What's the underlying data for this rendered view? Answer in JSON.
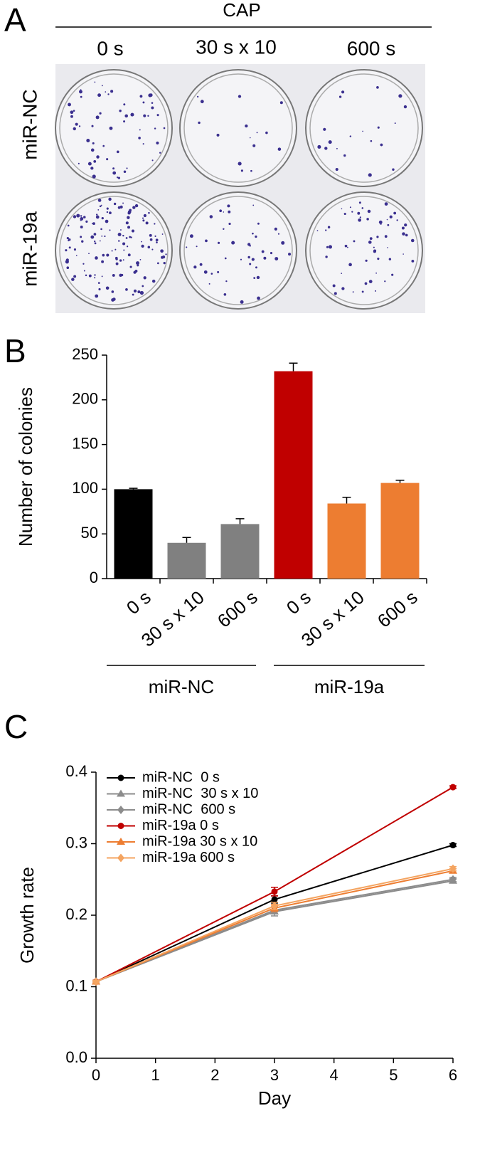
{
  "panel_a": {
    "letter": "A",
    "group_label": "CAP",
    "columns": [
      "0 s",
      "30 s x 10",
      "600 s"
    ],
    "rows": [
      "miR-NC",
      "miR-19a"
    ]
  },
  "chart_data": [
    {
      "letter": "B",
      "type": "bar",
      "y_label": "Number of colonies",
      "categories": [
        "0 s",
        "30 s x 10",
        "600 s",
        "0 s",
        "30 s x 10",
        "600 s"
      ],
      "values": [
        100,
        40,
        61,
        232,
        84,
        107
      ],
      "errors": [
        1,
        6,
        6,
        9,
        7,
        3
      ],
      "colors": [
        "#000000",
        "#808080",
        "#808080",
        "#c00000",
        "#ed7d31",
        "#ed7d31"
      ],
      "groups": [
        "miR-NC",
        "miR-19a"
      ],
      "ylim": [
        0,
        250
      ],
      "yticks": [
        0,
        50,
        100,
        150,
        200,
        250
      ]
    },
    {
      "letter": "C",
      "type": "line",
      "x_label": "Day",
      "y_label": "Growth rate",
      "x": [
        0,
        3,
        6
      ],
      "xlim": [
        0,
        6
      ],
      "xticks": [
        0,
        1,
        2,
        3,
        4,
        5,
        6
      ],
      "ylim": [
        0,
        0.4
      ],
      "yticks": [
        {
          "value": 0,
          "label": "0.0"
        },
        0.1,
        0.2,
        0.3,
        0.4
      ],
      "series": [
        {
          "name": "miR-NC  0 s",
          "color": "#000000",
          "marker": "circle",
          "values": [
            0.107,
            0.222,
            0.298
          ],
          "errors": [
            0.002,
            0.005,
            0.002
          ]
        },
        {
          "name": "miR-NC  30 s x 10",
          "color": "#8c8c8c",
          "marker": "triangle",
          "values": [
            0.107,
            0.205,
            0.248
          ],
          "errors": [
            0.002,
            0.006,
            0.003
          ]
        },
        {
          "name": "miR-NC  600 s",
          "color": "#8c8c8c",
          "marker": "diamond",
          "values": [
            0.107,
            0.207,
            0.25
          ],
          "errors": [
            0.002,
            0.005,
            0.003
          ]
        },
        {
          "name": "miR-19a 0 s",
          "color": "#c00000",
          "marker": "circle",
          "values": [
            0.107,
            0.233,
            0.379
          ],
          "errors": [
            0.002,
            0.006,
            0.002
          ]
        },
        {
          "name": "miR-19a 30 s x 10",
          "color": "#ed7d31",
          "marker": "triangle",
          "values": [
            0.107,
            0.21,
            0.262
          ],
          "errors": [
            0.002,
            0.005,
            0.003
          ]
        },
        {
          "name": "miR-19a 600 s",
          "color": "#f4a460",
          "marker": "diamond",
          "values": [
            0.107,
            0.213,
            0.265
          ],
          "errors": [
            0.002,
            0.005,
            0.003
          ]
        }
      ]
    }
  ]
}
